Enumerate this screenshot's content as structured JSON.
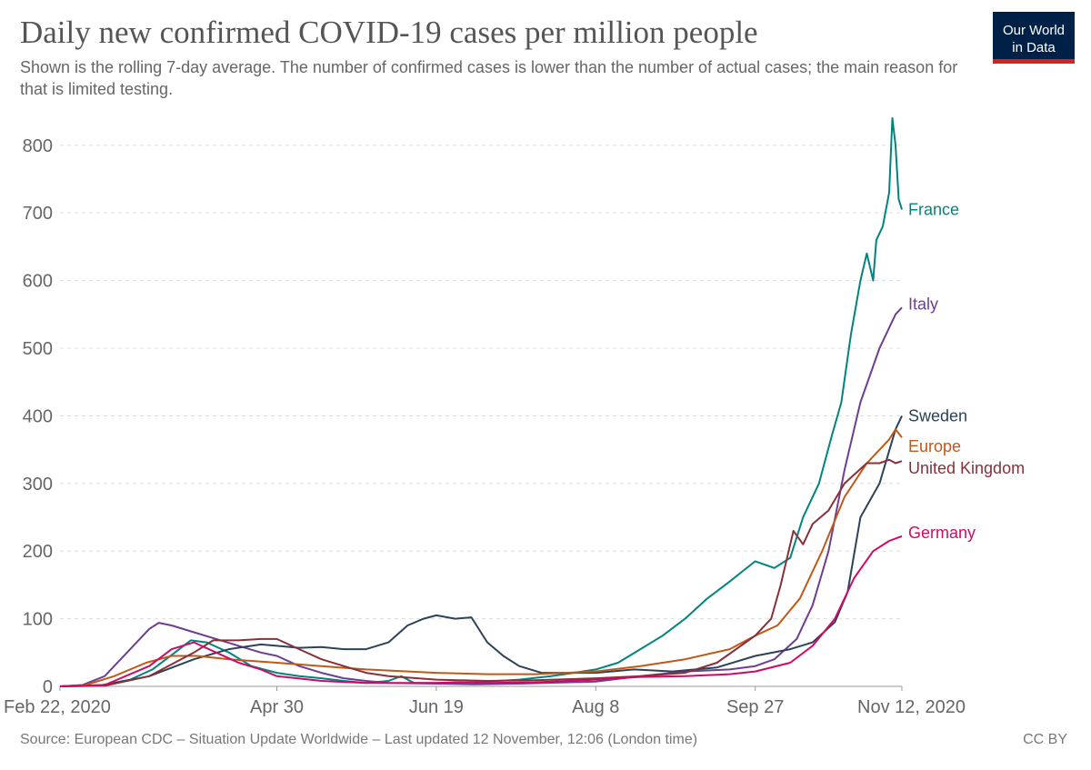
{
  "header": {
    "title": "Daily new confirmed COVID-19 cases per million people",
    "subtitle": "Shown is the rolling 7-day average. The number of confirmed cases is lower than the number of actual cases; the main reason for that is limited testing.",
    "logo_line1": "Our World",
    "logo_line2": "in Data"
  },
  "footer": {
    "source": "Source: European CDC – Situation Update Worldwide – Last updated 12 November, 12:06 (London time)",
    "license": "CC BY"
  },
  "colors": {
    "France": "#00847e",
    "Italy": "#6d3e91",
    "Sweden": "#2c4259",
    "Europe": "#c05917",
    "United Kingdom": "#883039",
    "Germany": "#cf0a66"
  },
  "chart_data": {
    "type": "line",
    "title": "Daily new confirmed COVID-19 cases per million people",
    "xlabel": "",
    "ylabel": "",
    "x_range": [
      "2020-02-22",
      "2020-11-12"
    ],
    "ylim": [
      0,
      840
    ],
    "y_ticks": [
      0,
      100,
      200,
      300,
      400,
      500,
      600,
      700,
      800
    ],
    "x_ticks": [
      {
        "date": "2020-02-22",
        "label": "Feb 22, 2020"
      },
      {
        "date": "2020-04-30",
        "label": "Apr 30"
      },
      {
        "date": "2020-06-19",
        "label": "Jun 19"
      },
      {
        "date": "2020-08-08",
        "label": "Aug 8"
      },
      {
        "date": "2020-09-27",
        "label": "Sep 27"
      },
      {
        "date": "2020-11-12",
        "label": "Nov 12, 2020"
      }
    ],
    "grid": "horizontal dashed",
    "legend": "line-end labels",
    "series": [
      {
        "name": "France",
        "points": [
          [
            "2020-02-22",
            0
          ],
          [
            "2020-03-05",
            1
          ],
          [
            "2020-03-15",
            10
          ],
          [
            "2020-03-22",
            25
          ],
          [
            "2020-03-29",
            50
          ],
          [
            "2020-04-03",
            68
          ],
          [
            "2020-04-08",
            65
          ],
          [
            "2020-04-15",
            50
          ],
          [
            "2020-04-22",
            30
          ],
          [
            "2020-04-30",
            20
          ],
          [
            "2020-05-07",
            15
          ],
          [
            "2020-05-14",
            12
          ],
          [
            "2020-05-21",
            8
          ],
          [
            "2020-05-28",
            5
          ],
          [
            "2020-06-04",
            8
          ],
          [
            "2020-06-08",
            15
          ],
          [
            "2020-06-12",
            5
          ],
          [
            "2020-06-19",
            5
          ],
          [
            "2020-07-01",
            6
          ],
          [
            "2020-07-15",
            10
          ],
          [
            "2020-07-25",
            15
          ],
          [
            "2020-08-08",
            25
          ],
          [
            "2020-08-15",
            35
          ],
          [
            "2020-08-22",
            55
          ],
          [
            "2020-08-29",
            75
          ],
          [
            "2020-09-05",
            100
          ],
          [
            "2020-09-12",
            130
          ],
          [
            "2020-09-19",
            155
          ],
          [
            "2020-09-23",
            170
          ],
          [
            "2020-09-27",
            185
          ],
          [
            "2020-10-03",
            175
          ],
          [
            "2020-10-08",
            190
          ],
          [
            "2020-10-12",
            250
          ],
          [
            "2020-10-17",
            300
          ],
          [
            "2020-10-21",
            370
          ],
          [
            "2020-10-24",
            420
          ],
          [
            "2020-10-27",
            520
          ],
          [
            "2020-10-30",
            600
          ],
          [
            "2020-11-01",
            640
          ],
          [
            "2020-11-02",
            620
          ],
          [
            "2020-11-03",
            600
          ],
          [
            "2020-11-04",
            660
          ],
          [
            "2020-11-06",
            680
          ],
          [
            "2020-11-08",
            730
          ],
          [
            "2020-11-09",
            840
          ],
          [
            "2020-11-10",
            800
          ],
          [
            "2020-11-11",
            720
          ],
          [
            "2020-11-12",
            705
          ]
        ]
      },
      {
        "name": "Italy",
        "points": [
          [
            "2020-02-22",
            0
          ],
          [
            "2020-02-29",
            2
          ],
          [
            "2020-03-07",
            15
          ],
          [
            "2020-03-14",
            50
          ],
          [
            "2020-03-21",
            85
          ],
          [
            "2020-03-24",
            94
          ],
          [
            "2020-03-28",
            90
          ],
          [
            "2020-04-04",
            80
          ],
          [
            "2020-04-11",
            70
          ],
          [
            "2020-04-18",
            60
          ],
          [
            "2020-04-25",
            50
          ],
          [
            "2020-04-30",
            45
          ],
          [
            "2020-05-07",
            30
          ],
          [
            "2020-05-14",
            20
          ],
          [
            "2020-05-21",
            12
          ],
          [
            "2020-05-28",
            8
          ],
          [
            "2020-06-04",
            5
          ],
          [
            "2020-06-19",
            4
          ],
          [
            "2020-07-01",
            3
          ],
          [
            "2020-07-15",
            4
          ],
          [
            "2020-08-08",
            7
          ],
          [
            "2020-08-22",
            15
          ],
          [
            "2020-09-05",
            22
          ],
          [
            "2020-09-19",
            25
          ],
          [
            "2020-09-27",
            30
          ],
          [
            "2020-10-03",
            40
          ],
          [
            "2020-10-10",
            70
          ],
          [
            "2020-10-15",
            120
          ],
          [
            "2020-10-20",
            200
          ],
          [
            "2020-10-25",
            320
          ],
          [
            "2020-10-30",
            420
          ],
          [
            "2020-11-05",
            500
          ],
          [
            "2020-11-10",
            550
          ],
          [
            "2020-11-12",
            560
          ]
        ]
      },
      {
        "name": "Sweden",
        "points": [
          [
            "2020-02-22",
            0
          ],
          [
            "2020-03-07",
            2
          ],
          [
            "2020-03-21",
            15
          ],
          [
            "2020-04-04",
            40
          ],
          [
            "2020-04-15",
            55
          ],
          [
            "2020-04-25",
            62
          ],
          [
            "2020-04-30",
            60
          ],
          [
            "2020-05-07",
            57
          ],
          [
            "2020-05-14",
            58
          ],
          [
            "2020-05-21",
            55
          ],
          [
            "2020-05-28",
            55
          ],
          [
            "2020-06-04",
            65
          ],
          [
            "2020-06-10",
            90
          ],
          [
            "2020-06-15",
            100
          ],
          [
            "2020-06-19",
            105
          ],
          [
            "2020-06-25",
            100
          ],
          [
            "2020-06-30",
            102
          ],
          [
            "2020-07-05",
            65
          ],
          [
            "2020-07-10",
            45
          ],
          [
            "2020-07-15",
            30
          ],
          [
            "2020-07-22",
            20
          ],
          [
            "2020-08-08",
            20
          ],
          [
            "2020-08-20",
            25
          ],
          [
            "2020-09-01",
            22
          ],
          [
            "2020-09-15",
            28
          ],
          [
            "2020-09-27",
            45
          ],
          [
            "2020-10-08",
            55
          ],
          [
            "2020-10-15",
            65
          ],
          [
            "2020-10-22",
            95
          ],
          [
            "2020-10-26",
            140
          ],
          [
            "2020-10-30",
            250
          ],
          [
            "2020-11-05",
            300
          ],
          [
            "2020-11-10",
            380
          ],
          [
            "2020-11-12",
            400
          ]
        ]
      },
      {
        "name": "Europe",
        "points": [
          [
            "2020-02-22",
            0
          ],
          [
            "2020-03-01",
            2
          ],
          [
            "2020-03-10",
            15
          ],
          [
            "2020-03-20",
            35
          ],
          [
            "2020-03-28",
            45
          ],
          [
            "2020-04-05",
            45
          ],
          [
            "2020-04-15",
            40
          ],
          [
            "2020-04-30",
            35
          ],
          [
            "2020-05-14",
            30
          ],
          [
            "2020-05-28",
            25
          ],
          [
            "2020-06-19",
            20
          ],
          [
            "2020-07-05",
            18
          ],
          [
            "2020-07-20",
            18
          ],
          [
            "2020-08-08",
            22
          ],
          [
            "2020-08-22",
            30
          ],
          [
            "2020-09-05",
            40
          ],
          [
            "2020-09-19",
            55
          ],
          [
            "2020-09-27",
            75
          ],
          [
            "2020-10-04",
            90
          ],
          [
            "2020-10-11",
            130
          ],
          [
            "2020-10-18",
            200
          ],
          [
            "2020-10-25",
            280
          ],
          [
            "2020-11-01",
            330
          ],
          [
            "2020-11-08",
            365
          ],
          [
            "2020-11-10",
            380
          ],
          [
            "2020-11-12",
            368
          ]
        ]
      },
      {
        "name": "United Kingdom",
        "points": [
          [
            "2020-02-22",
            0
          ],
          [
            "2020-03-07",
            1
          ],
          [
            "2020-03-21",
            15
          ],
          [
            "2020-04-04",
            50
          ],
          [
            "2020-04-10",
            68
          ],
          [
            "2020-04-18",
            68
          ],
          [
            "2020-04-25",
            70
          ],
          [
            "2020-04-30",
            70
          ],
          [
            "2020-05-07",
            55
          ],
          [
            "2020-05-14",
            40
          ],
          [
            "2020-05-21",
            30
          ],
          [
            "2020-05-28",
            20
          ],
          [
            "2020-06-04",
            15
          ],
          [
            "2020-06-19",
            10
          ],
          [
            "2020-07-05",
            8
          ],
          [
            "2020-07-20",
            9
          ],
          [
            "2020-08-08",
            12
          ],
          [
            "2020-08-22",
            15
          ],
          [
            "2020-09-05",
            20
          ],
          [
            "2020-09-15",
            35
          ],
          [
            "2020-09-27",
            75
          ],
          [
            "2020-10-02",
            100
          ],
          [
            "2020-10-05",
            150
          ],
          [
            "2020-10-09",
            230
          ],
          [
            "2020-10-12",
            210
          ],
          [
            "2020-10-15",
            240
          ],
          [
            "2020-10-20",
            260
          ],
          [
            "2020-10-25",
            300
          ],
          [
            "2020-11-01",
            330
          ],
          [
            "2020-11-05",
            330
          ],
          [
            "2020-11-08",
            335
          ],
          [
            "2020-11-10",
            330
          ],
          [
            "2020-11-12",
            333
          ]
        ]
      },
      {
        "name": "Germany",
        "points": [
          [
            "2020-02-22",
            0
          ],
          [
            "2020-03-07",
            2
          ],
          [
            "2020-03-21",
            30
          ],
          [
            "2020-03-28",
            55
          ],
          [
            "2020-04-04",
            65
          ],
          [
            "2020-04-11",
            50
          ],
          [
            "2020-04-18",
            35
          ],
          [
            "2020-04-25",
            25
          ],
          [
            "2020-04-30",
            15
          ],
          [
            "2020-05-14",
            8
          ],
          [
            "2020-05-28",
            5
          ],
          [
            "2020-06-19",
            5
          ],
          [
            "2020-06-25",
            6
          ],
          [
            "2020-07-05",
            5
          ],
          [
            "2020-07-20",
            6
          ],
          [
            "2020-08-08",
            10
          ],
          [
            "2020-08-22",
            14
          ],
          [
            "2020-09-05",
            15
          ],
          [
            "2020-09-19",
            18
          ],
          [
            "2020-09-27",
            22
          ],
          [
            "2020-10-08",
            35
          ],
          [
            "2020-10-15",
            60
          ],
          [
            "2020-10-22",
            100
          ],
          [
            "2020-10-28",
            160
          ],
          [
            "2020-11-03",
            200
          ],
          [
            "2020-11-08",
            215
          ],
          [
            "2020-11-12",
            222
          ]
        ]
      }
    ]
  }
}
